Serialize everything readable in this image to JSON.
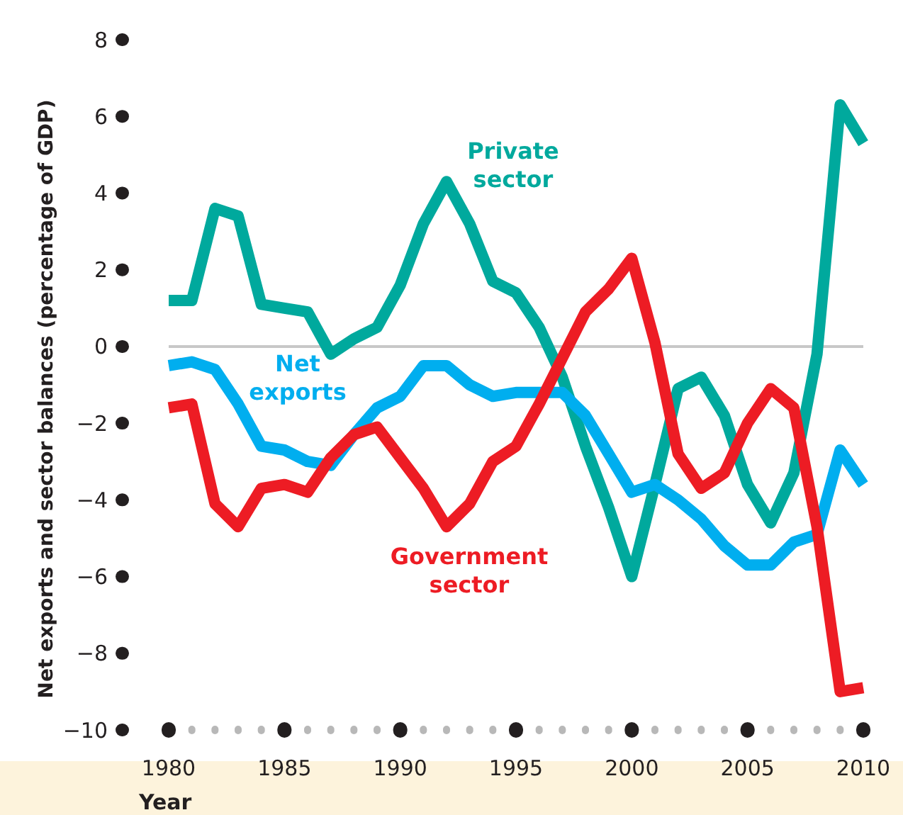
{
  "chart_data": {
    "type": "line",
    "xlabel": "Year",
    "ylabel": "Net exports and sector balances (percentage of GDP)",
    "x": [
      1980,
      1981,
      1982,
      1983,
      1984,
      1985,
      1986,
      1987,
      1988,
      1989,
      1990,
      1991,
      1992,
      1993,
      1994,
      1995,
      1996,
      1997,
      1998,
      1999,
      2000,
      2001,
      2002,
      2003,
      2004,
      2005,
      2006,
      2007,
      2008,
      2009,
      2010
    ],
    "series": [
      {
        "name": "Private sector",
        "color": "#00a99d",
        "values": [
          1.2,
          1.2,
          3.6,
          3.4,
          1.1,
          1.0,
          0.9,
          -0.2,
          0.2,
          0.5,
          1.6,
          3.2,
          4.3,
          3.2,
          1.7,
          1.4,
          0.5,
          -0.8,
          -2.6,
          -4.2,
          -6.0,
          -3.6,
          -1.1,
          -0.8,
          -1.8,
          -3.6,
          -4.6,
          -3.3,
          -0.2,
          6.3,
          5.3
        ]
      },
      {
        "name": "Net exports",
        "color": "#00aeef",
        "values": [
          -0.5,
          -0.4,
          -0.6,
          -1.5,
          -2.6,
          -2.7,
          -3.0,
          -3.1,
          -2.3,
          -1.6,
          -1.3,
          -0.5,
          -0.5,
          -1.0,
          -1.3,
          -1.2,
          -1.2,
          -1.2,
          -1.8,
          -2.8,
          -3.8,
          -3.6,
          -4.0,
          -4.5,
          -5.2,
          -5.7,
          -5.7,
          -5.1,
          -4.9,
          -2.7,
          -3.6
        ]
      },
      {
        "name": "Government sector",
        "color": "#ed1c24",
        "values": [
          -1.6,
          -1.5,
          -4.1,
          -4.7,
          -3.7,
          -3.6,
          -3.8,
          -2.9,
          -2.3,
          -2.1,
          -2.9,
          -3.7,
          -4.7,
          -4.1,
          -3.0,
          -2.6,
          -1.5,
          -0.3,
          0.9,
          1.5,
          2.3,
          0.1,
          -2.8,
          -3.7,
          -3.3,
          -2.0,
          -1.1,
          -1.6,
          -4.7,
          -9.0,
          -8.9
        ]
      }
    ],
    "xlim": [
      1980,
      2010
    ],
    "xticks": [
      1980,
      {
        "value": 1981,
        "label": null
      },
      {
        "value": 1982,
        "label": null
      },
      {
        "value": 1983,
        "label": null
      },
      {
        "value": 1984,
        "label": null
      },
      1985,
      {
        "value": 1986,
        "label": null
      },
      {
        "value": 1987,
        "label": null
      },
      {
        "value": 1988,
        "label": null
      },
      {
        "value": 1989,
        "label": null
      },
      1990,
      {
        "value": 1991,
        "label": null
      },
      {
        "value": 1992,
        "label": null
      },
      {
        "value": 1993,
        "label": null
      },
      {
        "value": 1994,
        "label": null
      },
      1995,
      {
        "value": 1996,
        "label": null
      },
      {
        "value": 1997,
        "label": null
      },
      {
        "value": 1998,
        "label": null
      },
      {
        "value": 1999,
        "label": null
      },
      2000,
      {
        "value": 2001,
        "label": null
      },
      {
        "value": 2002,
        "label": null
      },
      {
        "value": 2003,
        "label": null
      },
      {
        "value": 2004,
        "label": null
      },
      2005,
      {
        "value": 2006,
        "label": null
      },
      {
        "value": 2007,
        "label": null
      },
      {
        "value": 2008,
        "label": null
      },
      {
        "value": 2009,
        "label": null
      },
      2010
    ],
    "ylim": [
      -10,
      8
    ],
    "yticks": [
      {
        "value": -10,
        "label": "−10"
      },
      {
        "value": -8,
        "label": "−8"
      },
      {
        "value": -6,
        "label": "−6"
      },
      {
        "value": -4,
        "label": "−4"
      },
      {
        "value": -2,
        "label": "−2"
      },
      0,
      2,
      4,
      6,
      8
    ],
    "ref_lines": [
      {
        "axis": "y",
        "value": 0,
        "color": "#c8c8c8"
      }
    ],
    "grid": false,
    "marker": "none",
    "line_style": "solid"
  }
}
